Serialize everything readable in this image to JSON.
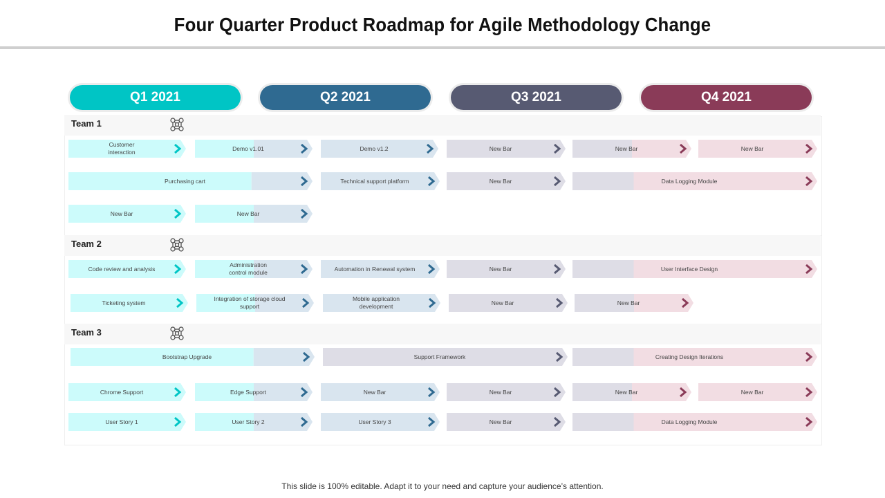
{
  "title": "Four Quarter Product Roadmap for Agile Methodology  Change",
  "footer": "This slide is 100% editable. Adapt it to your need and capture your audience’s attention.",
  "colors": {
    "q1": "#00c5c5",
    "q2": "#2f6a91",
    "q3": "#575a72",
    "q4": "#8a3b58",
    "q1_light": "#ccfbfb",
    "q2_light": "#d9e5ef",
    "q3_light": "#dedde6",
    "q4_light": "#f2dde3"
  },
  "quarters": [
    {
      "label": "Q1 2021"
    },
    {
      "label": "Q2 2021"
    },
    {
      "label": "Q3 2021"
    },
    {
      "label": "Q4 2021"
    }
  ],
  "teams": [
    {
      "label": "Team 1",
      "icon": "team-network-icon",
      "bars": [
        {
          "text": "Customer\ninteraction"
        },
        {
          "text": "Demo v1.01"
        },
        {
          "text": "Demo v1.2"
        },
        {
          "text": "New Bar"
        },
        {
          "text": "New Bar"
        },
        {
          "text": "New Bar"
        },
        {
          "text": "Purchasing cart"
        },
        {
          "text": "Technical support platform"
        },
        {
          "text": "New Bar"
        },
        {
          "text": "Data Logging Module"
        },
        {
          "text": "New Bar"
        },
        {
          "text": "New Bar"
        }
      ]
    },
    {
      "label": "Team 2",
      "icon": "team-network-icon",
      "bars": [
        {
          "text": "Code review and analysis"
        },
        {
          "text": "Administration\ncontrol module"
        },
        {
          "text": "Automation in Renewal system"
        },
        {
          "text": "New Bar"
        },
        {
          "text": "User Interface Design"
        },
        {
          "text": "Ticketing system"
        },
        {
          "text": "Integration of storage cloud\nsupport"
        },
        {
          "text": "Mobile application\ndevelopment"
        },
        {
          "text": "New Bar"
        },
        {
          "text": "New Bar"
        }
      ]
    },
    {
      "label": "Team 3",
      "icon": "team-network-icon",
      "bars": [
        {
          "text": "Bootstrap Upgrade"
        },
        {
          "text": "Support Framework"
        },
        {
          "text": "Creating Design Iterations"
        },
        {
          "text": "Chrome Support"
        },
        {
          "text": "Edge Support"
        },
        {
          "text": "New Bar"
        },
        {
          "text": "New Bar"
        },
        {
          "text": "New Bar"
        },
        {
          "text": "New Bar"
        },
        {
          "text": "User Story 1"
        },
        {
          "text": "User Story 2"
        },
        {
          "text": "User Story 3"
        },
        {
          "text": "New Bar"
        },
        {
          "text": "Data Logging Module"
        }
      ]
    }
  ]
}
